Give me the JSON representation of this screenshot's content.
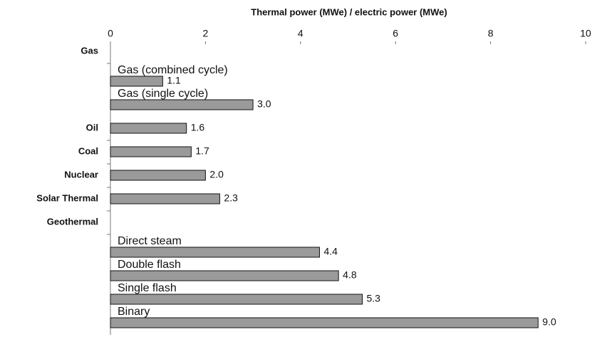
{
  "chart_data": {
    "type": "bar",
    "orientation": "horizontal",
    "x_label": "Thermal power (MWe) / electric power (MWe)",
    "xlim": [
      0,
      10
    ],
    "xticks": [
      0,
      2,
      4,
      6,
      8,
      10
    ],
    "color": "#9a9a9a",
    "groups": [
      {
        "name": "Gas",
        "items": [
          {
            "label": "Gas  (combined cycle)",
            "value": 1.1,
            "value_label": "1.1"
          },
          {
            "label": "Gas  (single cycle)",
            "value": 3.0,
            "value_label": "3.0"
          }
        ]
      },
      {
        "name": "Oil",
        "value": 1.6,
        "value_label": "1.6"
      },
      {
        "name": "Coal",
        "value": 1.7,
        "value_label": "1.7"
      },
      {
        "name": "Nuclear",
        "value": 2.0,
        "value_label": "2.0"
      },
      {
        "name": "Solar Thermal",
        "value": 2.3,
        "value_label": "2.3"
      },
      {
        "name": "Geothermal",
        "items": [
          {
            "label": "Direct steam",
            "value": 4.4,
            "value_label": "4.4"
          },
          {
            "label": "Double flash",
            "value": 4.8,
            "value_label": "4.8"
          },
          {
            "label": "Single flash",
            "value": 5.3,
            "value_label": "5.3"
          },
          {
            "label": "Binary",
            "value": 9.0,
            "value_label": "9.0"
          }
        ]
      }
    ]
  }
}
